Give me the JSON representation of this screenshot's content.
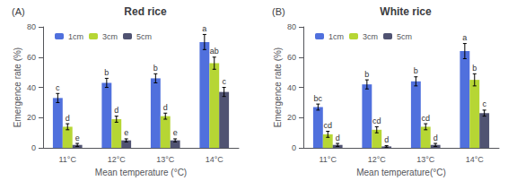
{
  "chart_data": [
    {
      "type": "bar",
      "title": "Red rice",
      "annotations": [
        "(A)"
      ],
      "categories": [
        "11°C",
        "12°C",
        "13°C",
        "14°C"
      ],
      "series": [
        {
          "name": "1cm",
          "values": [
            33,
            43,
            46,
            70
          ],
          "errors": [
            3,
            3,
            3,
            5
          ],
          "letters": [
            "c",
            "b",
            "b",
            "a"
          ]
        },
        {
          "name": "3cm",
          "values": [
            14,
            19,
            21,
            56
          ],
          "errors": [
            2,
            2,
            2,
            4
          ],
          "letters": [
            "d",
            "d",
            "d",
            "ab"
          ]
        },
        {
          "name": "5cm",
          "values": [
            2,
            5,
            5,
            37
          ],
          "errors": [
            1,
            1,
            1,
            3
          ],
          "letters": [
            "e",
            "e",
            "e",
            "c"
          ]
        }
      ],
      "xlabel": "Mean temperature (°C)",
      "ylabel": "Emergence rate (%)",
      "ylim": [
        0,
        80
      ],
      "yticks": [
        0,
        20,
        40,
        60,
        80
      ],
      "grid": false,
      "legend": "upper left"
    },
    {
      "type": "bar",
      "title": "White rice",
      "annotations": [
        "(B)"
      ],
      "categories": [
        "11°C",
        "12°C",
        "13°C",
        "14°C"
      ],
      "series": [
        {
          "name": "1cm",
          "values": [
            27,
            42,
            44,
            64
          ],
          "errors": [
            2,
            3,
            3,
            5
          ],
          "letters": [
            "bc",
            "b",
            "b",
            "a"
          ]
        },
        {
          "name": "3cm",
          "values": [
            9,
            12,
            14,
            45
          ],
          "errors": [
            2,
            2,
            2,
            4
          ],
          "letters": [
            "cd",
            "cd",
            "cd",
            "b"
          ]
        },
        {
          "name": "5cm",
          "values": [
            2,
            1,
            2,
            23
          ],
          "errors": [
            1,
            0.5,
            1,
            2
          ],
          "letters": [
            "d",
            "d",
            "d",
            "c"
          ]
        }
      ],
      "xlabel": "Mean temperature(°C)",
      "ylabel": "Emergence rate (%)",
      "ylim": [
        0,
        80
      ],
      "yticks": [
        0,
        20,
        40,
        60,
        80
      ],
      "grid": false,
      "legend": "upper left"
    }
  ]
}
